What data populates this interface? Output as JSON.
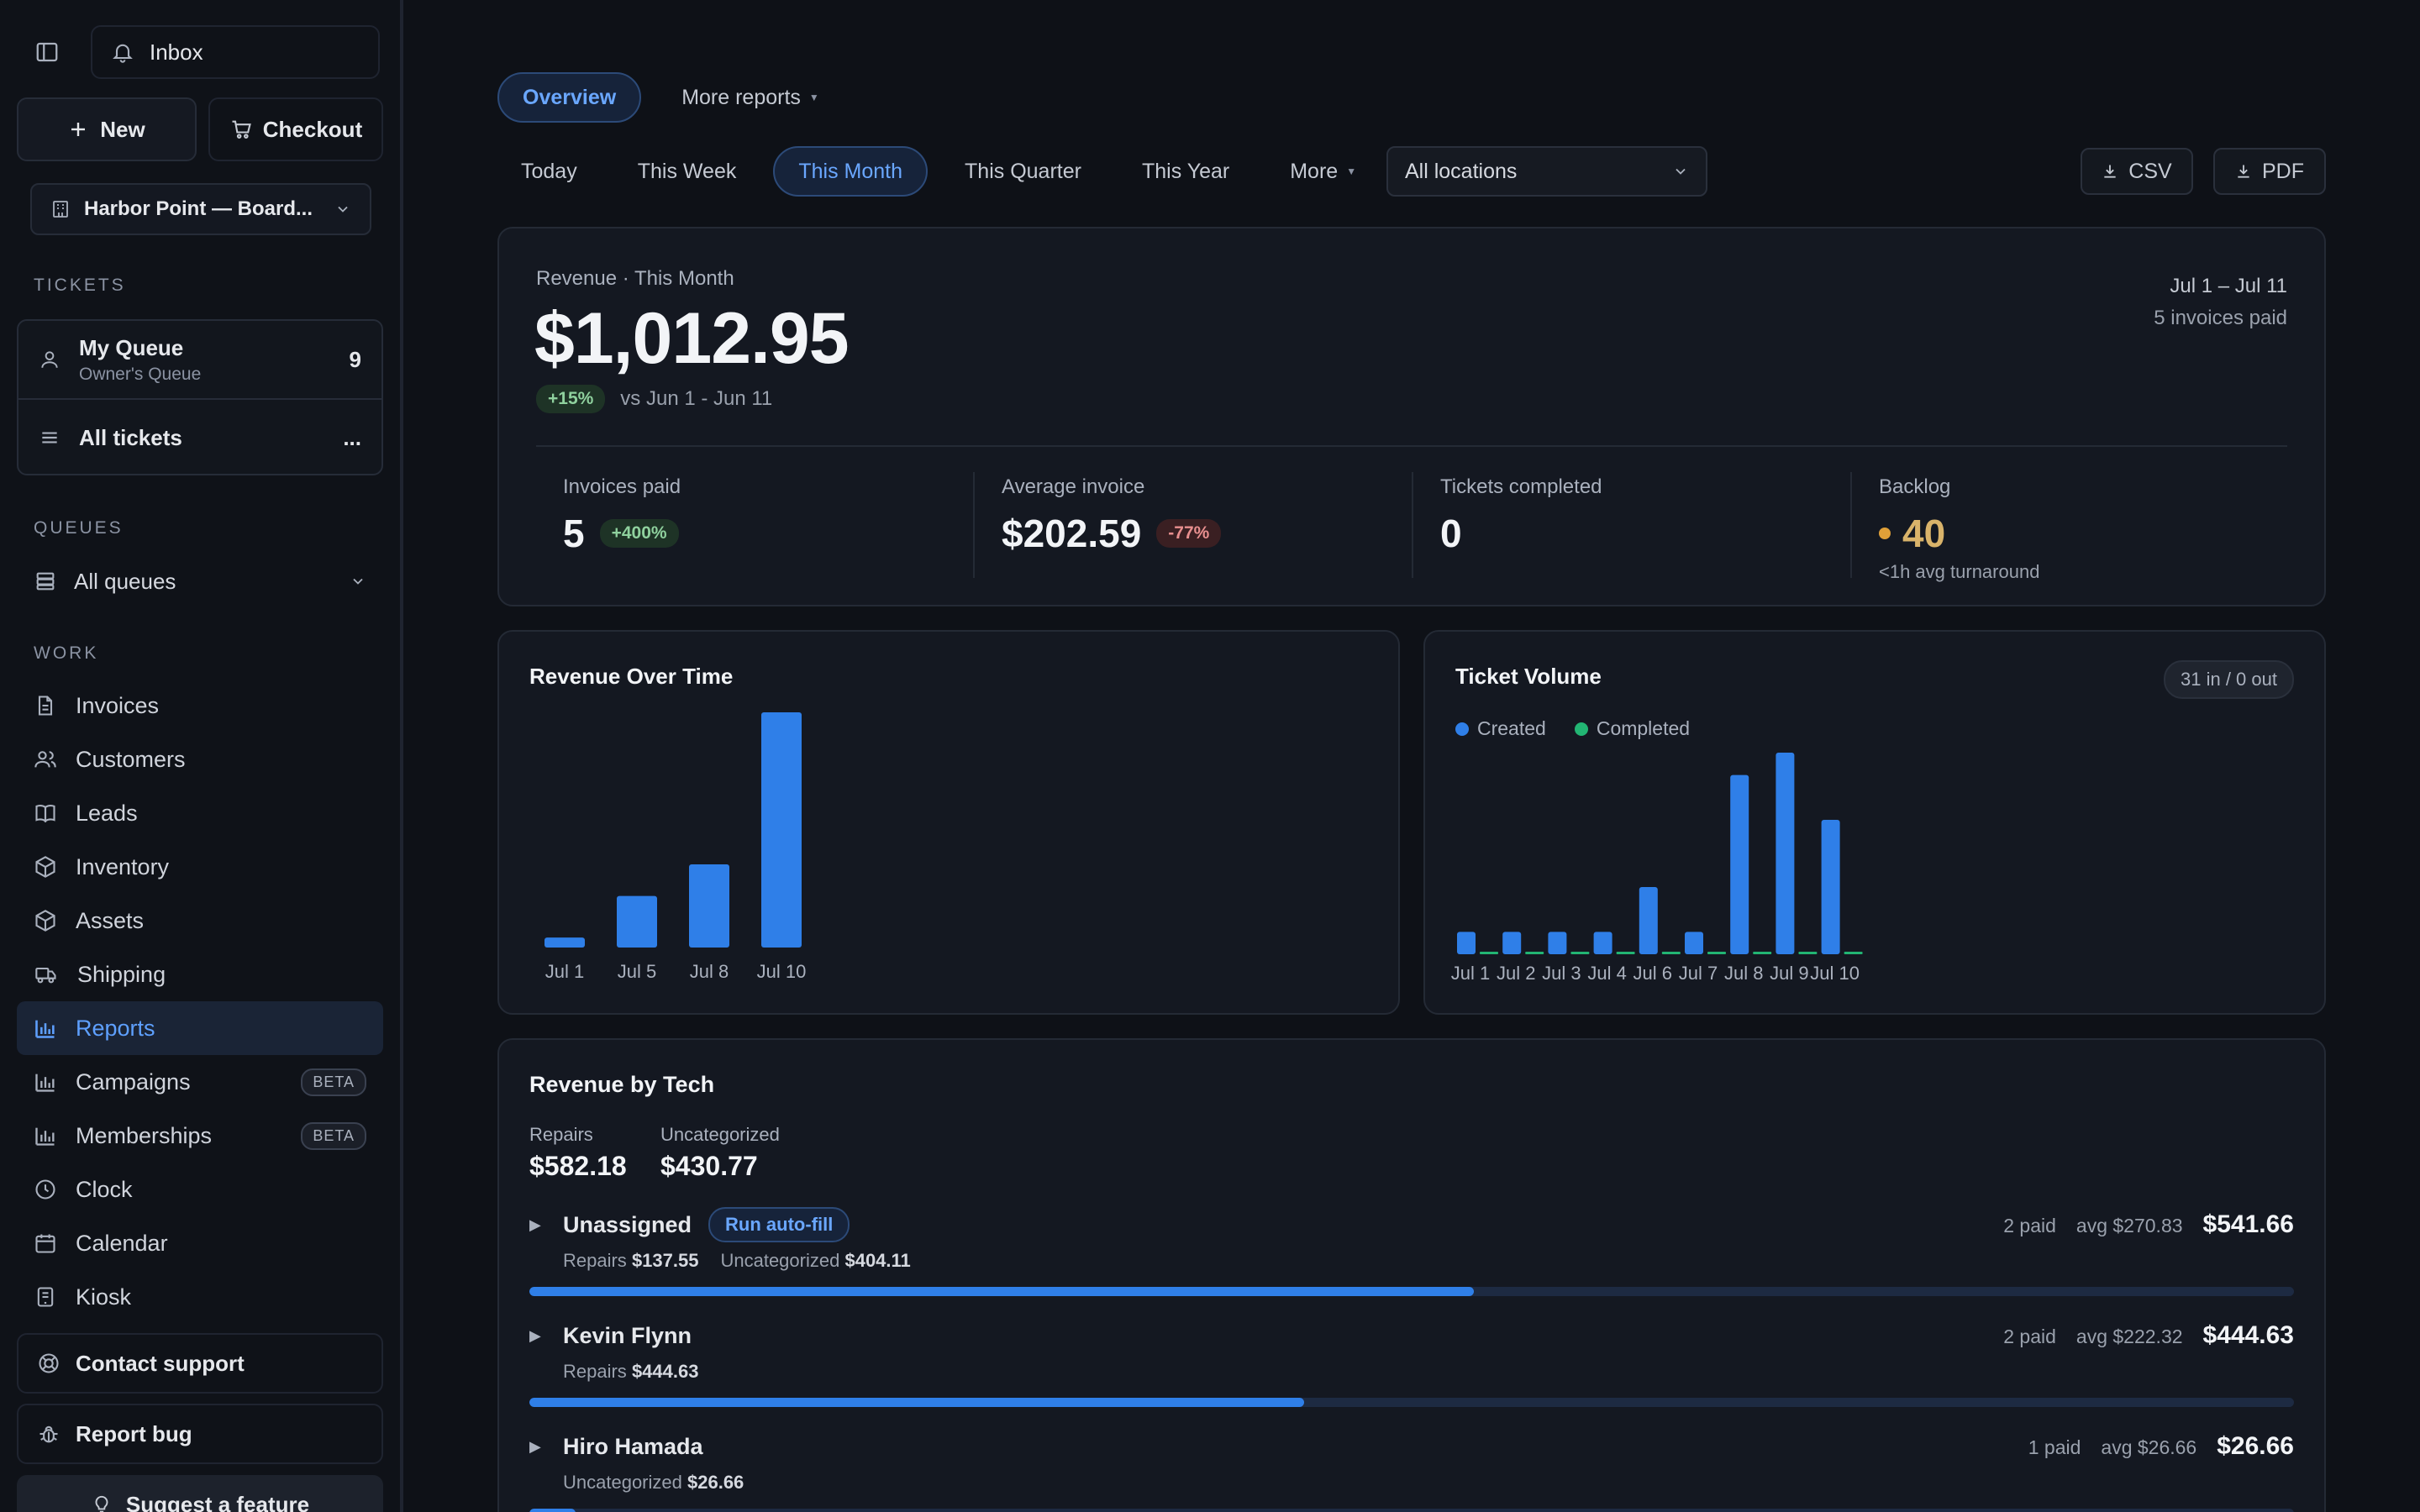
{
  "sidebar": {
    "inbox_label": "Inbox",
    "new_label": "New",
    "checkout_label": "Checkout",
    "location": "Harbor Point — Board...",
    "tickets_section": "TICKETS",
    "my_queue": {
      "title": "My Queue",
      "subtitle": "Owner's Queue",
      "count": "9"
    },
    "all_tickets": {
      "title": "All tickets",
      "more": "..."
    },
    "queues_section": "QUEUES",
    "all_queues": "All queues",
    "work_section": "WORK",
    "nav": [
      {
        "label": "Invoices",
        "icon": "file-icon"
      },
      {
        "label": "Customers",
        "icon": "users-icon"
      },
      {
        "label": "Leads",
        "icon": "book-icon"
      },
      {
        "label": "Inventory",
        "icon": "box-icon"
      },
      {
        "label": "Assets",
        "icon": "cube-icon"
      },
      {
        "label": "Shipping",
        "icon": "truck-icon"
      },
      {
        "label": "Reports",
        "icon": "bar-chart-icon",
        "active": true
      },
      {
        "label": "Campaigns",
        "icon": "bar-chart-icon",
        "badge": "BETA"
      },
      {
        "label": "Memberships",
        "icon": "bar-chart-icon",
        "badge": "BETA"
      },
      {
        "label": "Clock",
        "icon": "clock-icon"
      },
      {
        "label": "Calendar",
        "icon": "calendar-icon"
      },
      {
        "label": "Kiosk",
        "icon": "tablet-icon"
      }
    ],
    "contact_support": "Contact support",
    "report_bug": "Report bug",
    "suggest_feature": "Suggest a feature"
  },
  "tabs": [
    {
      "label": "Overview",
      "active": true
    },
    {
      "label": "More reports",
      "active": false
    }
  ],
  "periods": [
    {
      "label": "Today"
    },
    {
      "label": "This Week"
    },
    {
      "label": "This Month",
      "active": true
    },
    {
      "label": "This Quarter"
    },
    {
      "label": "This Year"
    },
    {
      "label": "More"
    }
  ],
  "location_filter": "All locations",
  "export": {
    "csv": "CSV",
    "pdf": "PDF"
  },
  "revenue": {
    "label": "Revenue · This Month",
    "value": "$1,012.95",
    "change": "+15%",
    "compare": "vs Jun 1 - Jun 11",
    "range": "Jul 1 – Jul 11",
    "invoices_paid_note": "5 invoices paid"
  },
  "stats": {
    "invoices_paid": {
      "label": "Invoices paid",
      "value": "5",
      "change": "+400%"
    },
    "average_invoice": {
      "label": "Average invoice",
      "value": "$202.59",
      "change": "-77%"
    },
    "tickets_completed": {
      "label": "Tickets completed",
      "value": "0"
    },
    "backlog": {
      "label": "Backlog",
      "value": "40",
      "sub": "<1h avg turnaround"
    }
  },
  "colors": {
    "accent": "#2f7fe8",
    "created": "#2f7fe8",
    "completed": "#22b573",
    "backlog": "#e0a038",
    "background": "#0e1117"
  },
  "chart_data": [
    {
      "type": "bar",
      "title": "Revenue Over Time",
      "categories": [
        "Jul 1",
        "Jul 5",
        "Jul 8",
        "Jul 10"
      ],
      "values": [
        26.66,
        137.55,
        221.67,
        627.07
      ],
      "xlabel": "",
      "ylabel": "",
      "ylim": [
        0,
        627.07
      ],
      "grid": false
    },
    {
      "type": "bar",
      "title": "Ticket Volume",
      "badge": "31 in / 0 out",
      "categories": [
        "Jul 1",
        "Jul 2",
        "Jul 3",
        "Jul 4",
        "Jul 6",
        "Jul 7",
        "Jul 8",
        "Jul 9",
        "Jul 10"
      ],
      "series": [
        {
          "name": "Created",
          "values": [
            1,
            1,
            1,
            1,
            3,
            1,
            8,
            9,
            6
          ]
        },
        {
          "name": "Completed",
          "values": [
            0,
            0,
            0,
            0,
            0,
            0,
            0,
            0,
            0
          ]
        }
      ],
      "legend": "top-left",
      "ylim": [
        0,
        9
      ],
      "grid": false
    }
  ],
  "tech": {
    "title": "Revenue by Tech",
    "summary": [
      {
        "label": "Repairs",
        "value": "$582.18"
      },
      {
        "label": "Uncategorized",
        "value": "$430.77"
      }
    ],
    "rows": [
      {
        "name": "Unassigned",
        "action": "Run auto-fill",
        "paid": "2 paid",
        "avg": "avg $270.83",
        "total": "$541.66",
        "breakdown": [
          {
            "label": "Repairs",
            "value": "$137.55"
          },
          {
            "label": "Uncategorized",
            "value": "$404.11"
          }
        ],
        "share": 0.535
      },
      {
        "name": "Kevin Flynn",
        "paid": "2 paid",
        "avg": "avg $222.32",
        "total": "$444.63",
        "breakdown": [
          {
            "label": "Repairs",
            "value": "$444.63"
          }
        ],
        "share": 0.439
      },
      {
        "name": "Hiro Hamada",
        "paid": "1 paid",
        "avg": "avg $26.66",
        "total": "$26.66",
        "breakdown": [
          {
            "label": "Uncategorized",
            "value": "$26.66"
          }
        ],
        "share": 0.026
      }
    ]
  }
}
